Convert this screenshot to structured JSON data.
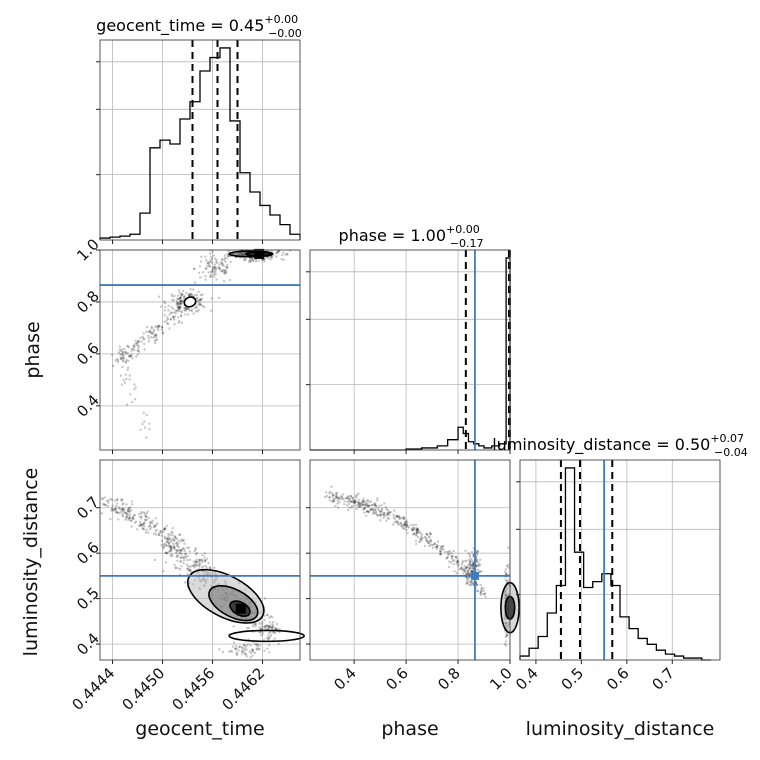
{
  "params": [
    "geocent_time",
    "phase",
    "luminosity_distance"
  ],
  "titles": {
    "geocent_time": {
      "name": "geocent_time",
      "median": "0.45",
      "plus": "+0.00",
      "minus": "−0.00"
    },
    "phase": {
      "name": "phase",
      "median": "1.00",
      "plus": "+0.00",
      "minus": "−0.17"
    },
    "luminosity_distance": {
      "name": "luminosity_distance",
      "median": "0.50",
      "plus": "+0.07",
      "minus": "−0.04"
    }
  },
  "axis_labels": {
    "geocent_time": "geocent_time",
    "phase": "phase",
    "luminosity_distance": "luminosity_distance"
  },
  "colors": {
    "truth": "#3f7cbf",
    "hist": "#000000",
    "grid": "#b8b8b8"
  },
  "chart_data": {
    "type": "corner",
    "grid": true,
    "ranges": {
      "geocent_time": [
        0.44425,
        0.44665
      ],
      "phase": [
        0.23,
        1.0
      ],
      "luminosity_distance": [
        0.365,
        0.805
      ]
    },
    "ticks": {
      "geocent_time": [
        {
          "v": 0.4444,
          "label": "0.4444"
        },
        {
          "v": 0.445,
          "label": "0.4450"
        },
        {
          "v": 0.4456,
          "label": "0.4456"
        },
        {
          "v": 0.4462,
          "label": "0.4462"
        }
      ],
      "phase": [
        {
          "v": 0.4,
          "label": "0.4"
        },
        {
          "v": 0.6,
          "label": "0.6"
        },
        {
          "v": 0.8,
          "label": "0.8"
        },
        {
          "v": 1.0,
          "label": "1.0"
        }
      ],
      "luminosity_distance": [
        {
          "v": 0.4,
          "label": "0.4"
        },
        {
          "v": 0.5,
          "label": "0.5"
        },
        {
          "v": 0.6,
          "label": "0.6"
        },
        {
          "v": 0.7,
          "label": "0.7"
        }
      ]
    },
    "truths": {
      "geocent_time": null,
      "phase": 0.865,
      "luminosity_distance": 0.55
    },
    "quantiles": {
      "geocent_time": [
        0.44536,
        0.44566,
        0.4459
      ],
      "phase": [
        0.83,
        0.996,
        0.9995
      ],
      "luminosity_distance": [
        0.455,
        0.497,
        0.568
      ]
    },
    "histograms": {
      "geocent_time": {
        "edges": [
          0.44425,
          0.44437,
          0.44449,
          0.44461,
          0.44473,
          0.44485,
          0.44497,
          0.44509,
          0.44521,
          0.44533,
          0.44545,
          0.44557,
          0.44569,
          0.44581,
          0.44593,
          0.44605,
          0.44617,
          0.44629,
          0.44641,
          0.44653,
          0.44665
        ],
        "counts": [
          0.01,
          0.015,
          0.02,
          0.03,
          0.14,
          0.48,
          0.52,
          0.5,
          0.63,
          0.72,
          0.88,
          0.95,
          1.0,
          0.62,
          0.35,
          0.25,
          0.18,
          0.13,
          0.08,
          0.03
        ]
      },
      "phase": {
        "edges": [
          0.23,
          0.6,
          0.66,
          0.72,
          0.76,
          0.8,
          0.82,
          0.84,
          0.86,
          0.88,
          0.9,
          0.93,
          0.96,
          0.985,
          1.0
        ],
        "counts": [
          0.0,
          0.005,
          0.01,
          0.02,
          0.05,
          0.11,
          0.08,
          0.04,
          0.03,
          0.02,
          0.01,
          0.02,
          0.03,
          0.93
        ]
      },
      "luminosity_distance": {
        "edges": [
          0.365,
          0.385,
          0.405,
          0.425,
          0.445,
          0.465,
          0.485,
          0.505,
          0.525,
          0.545,
          0.565,
          0.585,
          0.605,
          0.625,
          0.645,
          0.665,
          0.685,
          0.705,
          0.725,
          0.745,
          0.765,
          0.785
        ],
        "counts": [
          0.02,
          0.06,
          0.12,
          0.24,
          0.38,
          0.98,
          0.55,
          0.37,
          0.4,
          0.44,
          0.38,
          0.22,
          0.16,
          0.11,
          0.08,
          0.05,
          0.03,
          0.02,
          0.01,
          0.01,
          0.0
        ]
      }
    }
  }
}
